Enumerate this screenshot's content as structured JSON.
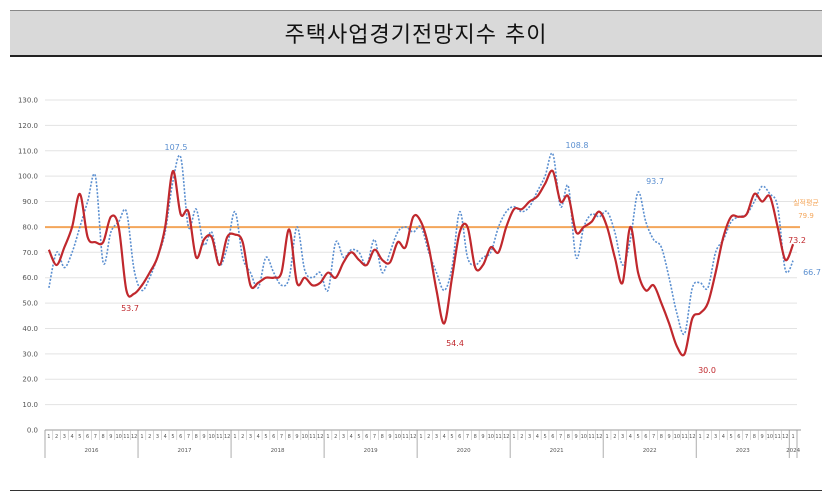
{
  "chart_data": {
    "type": "line",
    "title": "주택사업경기전망지수 추이",
    "ylim": [
      0,
      130
    ],
    "yticks": [
      "0.0",
      "10.0",
      "20.0",
      "30.0",
      "40.0",
      "50.0",
      "60.0",
      "70.0",
      "80.0",
      "90.0",
      "100.0",
      "110.0",
      "120.0",
      "130.0"
    ],
    "grid": true,
    "years": [
      "2016",
      "2017",
      "2018",
      "2019",
      "2020",
      "2021",
      "2022",
      "2023",
      "2024"
    ],
    "months": [
      "1",
      "2",
      "3",
      "4",
      "5",
      "6",
      "7",
      "8",
      "9",
      "10",
      "11",
      "12"
    ],
    "x_start": "2016-01",
    "x_end": "2024-01",
    "series": [
      {
        "color": "#c0282d",
        "style": "solid",
        "values": [
          71,
          65,
          72,
          80,
          93,
          76,
          74,
          74,
          84,
          80,
          55,
          53.7,
          57,
          62,
          68,
          80,
          102,
          85,
          86,
          68,
          75,
          76,
          65,
          76,
          77,
          74,
          57,
          58,
          60,
          60,
          62,
          79,
          58,
          60,
          57,
          58,
          62,
          60,
          66,
          70,
          67,
          65,
          71,
          67,
          66,
          74,
          72,
          84,
          82,
          72,
          55,
          42,
          60,
          78,
          80,
          64,
          65,
          72,
          70,
          80,
          87,
          87,
          90,
          92,
          97,
          102,
          90,
          92,
          78,
          80,
          82,
          86,
          80,
          68,
          58,
          80,
          62,
          55,
          57,
          50,
          42,
          33,
          30,
          44,
          46,
          50,
          62,
          76,
          84,
          84,
          85,
          93,
          90,
          92,
          80,
          67,
          73.2
        ]
      },
      {
        "color": "#5b8fd0",
        "style": "dotted",
        "values": [
          56,
          70,
          64,
          70,
          80,
          90,
          100,
          66,
          78,
          82,
          86,
          63,
          55,
          60,
          68,
          78,
          98,
          107.5,
          80,
          87,
          73,
          78,
          65,
          72,
          86,
          68,
          62,
          56,
          68,
          62,
          57,
          60,
          80,
          63,
          60,
          62,
          55,
          74,
          68,
          71,
          70,
          65,
          75,
          62,
          70,
          78,
          80,
          78,
          80,
          70,
          62,
          55,
          64,
          86,
          68,
          65,
          68,
          70,
          80,
          86,
          88,
          86,
          88,
          94,
          100,
          108.8,
          88,
          96,
          68,
          80,
          85,
          84,
          86,
          78,
          65,
          75,
          93.7,
          82,
          75,
          72,
          60,
          46,
          38,
          56,
          58,
          56,
          70,
          75,
          82,
          84,
          85,
          90,
          96,
          93,
          88,
          63,
          66.7
        ]
      }
    ],
    "reference_line": {
      "label": "실적평균",
      "value": 79.9,
      "value_label": "79.9",
      "color": "#f4a65a"
    },
    "annotations": [
      {
        "text": "107.5",
        "color": "#5b8fd0"
      },
      {
        "text": "53.7",
        "color": "#c0282d"
      },
      {
        "text": "54.4",
        "color": "#c0282d"
      },
      {
        "text": "108.8",
        "color": "#5b8fd0"
      },
      {
        "text": "93.7",
        "color": "#5b8fd0"
      },
      {
        "text": "30.0",
        "color": "#c0282d"
      },
      {
        "text": "73.2",
        "color": "#c0282d"
      },
      {
        "text": "66.7",
        "color": "#5b8fd0"
      }
    ]
  }
}
